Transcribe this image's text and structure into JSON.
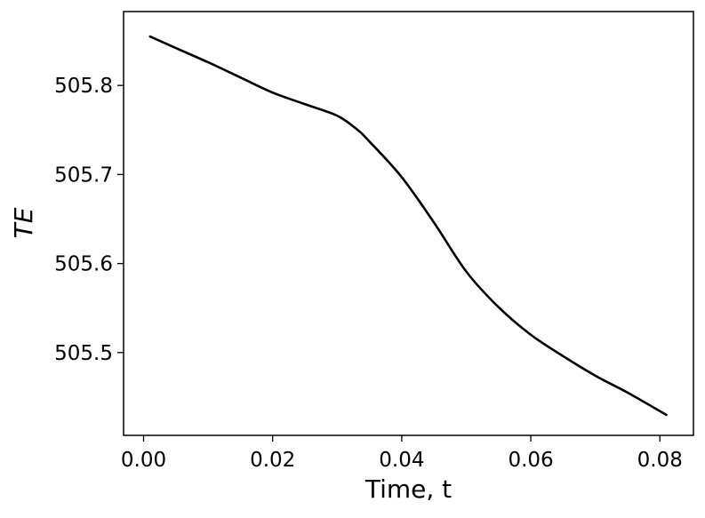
{
  "chart_data": {
    "type": "line",
    "title": "",
    "xlabel": "Time, t",
    "ylabel": "TE",
    "xlim": [
      -0.0031,
      0.0852
    ],
    "ylim": [
      505.407,
      505.883
    ],
    "xticks": [
      0.0,
      0.02,
      0.04,
      0.06,
      0.08
    ],
    "xtick_labels": [
      "0.00",
      "0.02",
      "0.04",
      "0.06",
      "0.08"
    ],
    "yticks": [
      505.5,
      505.6,
      505.7,
      505.8
    ],
    "ytick_labels": [
      "505.5",
      "505.6",
      "505.7",
      "505.8"
    ],
    "grid": false,
    "series": [
      {
        "color": "#000000",
        "x": [
          0.001,
          0.005,
          0.01,
          0.015,
          0.02,
          0.025,
          0.03,
          0.033,
          0.035,
          0.04,
          0.045,
          0.05,
          0.055,
          0.06,
          0.065,
          0.07,
          0.075,
          0.081
        ],
        "y": [
          505.855,
          505.842,
          505.826,
          505.809,
          505.792,
          505.779,
          505.766,
          505.751,
          505.737,
          505.697,
          505.646,
          505.591,
          505.551,
          505.52,
          505.496,
          505.474,
          505.455,
          505.43
        ]
      }
    ]
  }
}
